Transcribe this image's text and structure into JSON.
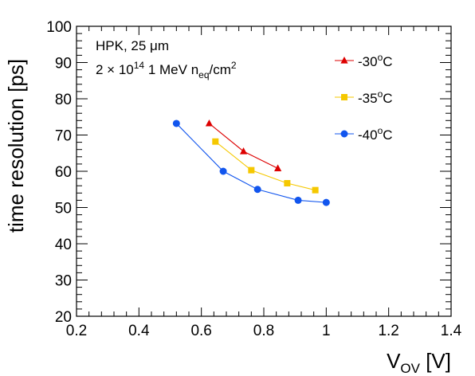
{
  "chart_data": {
    "type": "line",
    "xlabel": "V",
    "xlabel_sub": "OV",
    "xlabel_unit": " [V]",
    "ylabel": "time resolution [ps]",
    "xlim": [
      0.2,
      1.4
    ],
    "ylim": [
      20,
      100
    ],
    "x_ticks": [
      "0.2",
      "0.4",
      "0.6",
      "0.8",
      "1",
      "1.2",
      "1.4"
    ],
    "y_ticks": [
      "20",
      "30",
      "40",
      "50",
      "60",
      "70",
      "80",
      "90",
      "100"
    ],
    "annotations": {
      "line1": "HPK, 25 μm",
      "line2_pre": "2 × 10",
      "line2_exp": "14",
      "line2_mid": " 1 MeV n",
      "line2_sub": "eq",
      "line2_post": "/cm",
      "line2_exp2": "2"
    },
    "legend_position": "top-right",
    "series": [
      {
        "name": "-30",
        "unit_sup": "o",
        "unit_post": "C",
        "color": "#dd0000",
        "marker": "triangle",
        "points": [
          [
            0.625,
            73.2
          ],
          [
            0.735,
            65.5
          ],
          [
            0.845,
            60.8
          ]
        ]
      },
      {
        "name": "-35",
        "unit_sup": "o",
        "unit_post": "C",
        "color": "#f5c800",
        "marker": "square",
        "points": [
          [
            0.645,
            68.2
          ],
          [
            0.76,
            60.3
          ],
          [
            0.875,
            56.7
          ],
          [
            0.965,
            54.8
          ]
        ]
      },
      {
        "name": "-40",
        "unit_sup": "o",
        "unit_post": "C",
        "color": "#1155ee",
        "marker": "circle",
        "points": [
          [
            0.52,
            73.2
          ],
          [
            0.67,
            60.0
          ],
          [
            0.78,
            55.0
          ],
          [
            0.91,
            52.0
          ],
          [
            1.0,
            51.4
          ]
        ]
      }
    ]
  }
}
